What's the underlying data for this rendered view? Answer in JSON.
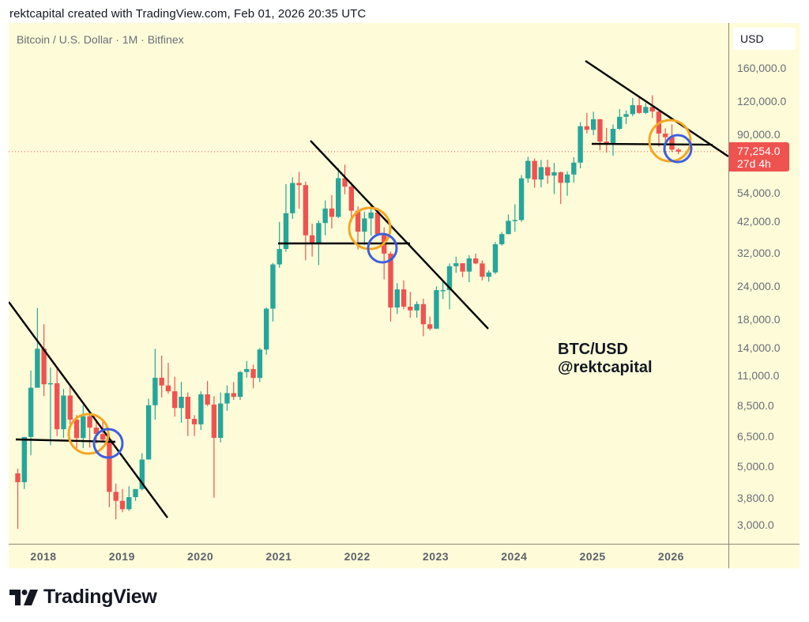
{
  "header": {
    "caption": "rektcapital created with TradingView.com, Feb 01, 2026 20:35 UTC"
  },
  "chart": {
    "symbol_label": "Bitcoin / U.S. Dollar · 1M · Bitfinex",
    "currency_button": "USD",
    "annotation_line1": "BTC/USD",
    "annotation_line2": "@rektcapital",
    "current_price": "77,254.0",
    "countdown": "27d 4h"
  },
  "footer": {
    "logo_text": "TradingView"
  },
  "colors": {
    "background": "#fefcd8",
    "up": "#26a69a",
    "down": "#ef5350",
    "trendline": "#000000",
    "orange_circle": "#f5a623",
    "blue_circle": "#3d5fe0",
    "price_line": "#ef5350"
  },
  "chart_data": {
    "type": "candlestick",
    "title": "Bitcoin / U.S. Dollar · 1M · Bitfinex",
    "xlabel": "",
    "ylabel": "USD",
    "scale": "log",
    "ylim": [
      2700,
      180000
    ],
    "grid": false,
    "y_ticks": [
      "160,000.0",
      "120,000.0",
      "90,000.0",
      "54,000.0",
      "42,000.0",
      "32,000.0",
      "24,000.0",
      "18,000.0",
      "14,000.0",
      "11,000.0",
      "8,500.0",
      "6,500.0",
      "5,000.0",
      "3,800.0",
      "3,000.0"
    ],
    "y_tick_values": [
      160000,
      120000,
      90000,
      54000,
      42000,
      32000,
      24000,
      18000,
      14000,
      11000,
      8500,
      6500,
      5000,
      3800,
      3000
    ],
    "x_ticks": [
      "2018",
      "2019",
      "2020",
      "2021",
      "2022",
      "2023",
      "2024",
      "2025",
      "2026"
    ],
    "last_price": 77254.0,
    "candles_start": "2017-09",
    "candles": [
      [
        4700,
        4900,
        2900,
        4350
      ],
      [
        4350,
        6400,
        4100,
        6450
      ],
      [
        6450,
        11500,
        5500,
        9900
      ],
      [
        9900,
        19800,
        10800,
        13900
      ],
      [
        13900,
        17200,
        9200,
        10200
      ],
      [
        10200,
        11800,
        6000,
        10300
      ],
      [
        10300,
        11700,
        6500,
        6900
      ],
      [
        6900,
        9800,
        6400,
        9250
      ],
      [
        9250,
        10000,
        7000,
        7500
      ],
      [
        7500,
        7800,
        5750,
        6390
      ],
      [
        6390,
        8500,
        5850,
        7730
      ],
      [
        7730,
        7800,
        5880,
        7000
      ],
      [
        7000,
        7400,
        6100,
        6620
      ],
      [
        6620,
        7400,
        6200,
        6300
      ],
      [
        6300,
        6600,
        3500,
        4000
      ],
      [
        4000,
        4300,
        3150,
        3700
      ],
      [
        3700,
        4100,
        3350,
        3440
      ],
      [
        3440,
        4200,
        3390,
        3820
      ],
      [
        3820,
        4100,
        3700,
        4100
      ],
      [
        4100,
        5600,
        4050,
        5300
      ],
      [
        5300,
        9000,
        5300,
        8500
      ],
      [
        8500,
        13900,
        7500,
        10800
      ],
      [
        10800,
        13100,
        9100,
        10100
      ],
      [
        10100,
        12300,
        9400,
        9600
      ],
      [
        9600,
        10900,
        7700,
        8300
      ],
      [
        8300,
        10400,
        7300,
        9150
      ],
      [
        9150,
        9500,
        6500,
        7550
      ],
      [
        7550,
        7800,
        6500,
        7200
      ],
      [
        7200,
        9600,
        6850,
        9350
      ],
      [
        9350,
        10500,
        8450,
        8550
      ],
      [
        8550,
        9200,
        3800,
        6400
      ],
      [
        6400,
        9500,
        6150,
        8630
      ],
      [
        8630,
        10100,
        8100,
        9450
      ],
      [
        9450,
        10400,
        8900,
        9140
      ],
      [
        9140,
        11450,
        8900,
        11350
      ],
      [
        11350,
        12500,
        10800,
        11650
      ],
      [
        11650,
        12100,
        9850,
        10780
      ],
      [
        10780,
        14000,
        10400,
        13800
      ],
      [
        13800,
        19900,
        13200,
        19700
      ],
      [
        19700,
        29300,
        17600,
        28950
      ],
      [
        28950,
        41900,
        28100,
        33100
      ],
      [
        33100,
        58300,
        32300,
        45200
      ],
      [
        45200,
        61800,
        43000,
        58800
      ],
      [
        58800,
        64800,
        47000,
        57700
      ],
      [
        57700,
        59500,
        30000,
        37300
      ],
      [
        37300,
        41300,
        31000,
        35000
      ],
      [
        35000,
        42400,
        28800,
        41500
      ],
      [
        41500,
        50500,
        37300,
        47100
      ],
      [
        47100,
        52900,
        39600,
        43800
      ],
      [
        43800,
        67000,
        43300,
        61300
      ],
      [
        61300,
        69000,
        53300,
        57000
      ],
      [
        57000,
        59100,
        41900,
        46200
      ],
      [
        46200,
        48000,
        33000,
        38500
      ],
      [
        38500,
        45800,
        34300,
        43200
      ],
      [
        43200,
        48200,
        37200,
        45500
      ],
      [
        45500,
        47400,
        37700,
        37700
      ],
      [
        37700,
        40000,
        25400,
        31800
      ],
      [
        31800,
        32400,
        17600,
        19900
      ],
      [
        19900,
        24600,
        18800,
        23300
      ],
      [
        23300,
        25200,
        19600,
        20050
      ],
      [
        20050,
        22800,
        18200,
        19400
      ],
      [
        19400,
        21000,
        18200,
        20500
      ],
      [
        20500,
        21500,
        15500,
        17200
      ],
      [
        17200,
        18400,
        16300,
        16550
      ],
      [
        16550,
        23900,
        16500,
        23150
      ],
      [
        23150,
        25300,
        21400,
        23150
      ],
      [
        23150,
        29200,
        19600,
        28500
      ],
      [
        28500,
        31000,
        26900,
        29250
      ],
      [
        29250,
        29300,
        25900,
        27200
      ],
      [
        27200,
        31400,
        24800,
        30500
      ],
      [
        30500,
        31800,
        29000,
        29200
      ],
      [
        29200,
        30000,
        25200,
        26000
      ],
      [
        26000,
        27500,
        24900,
        27000
      ],
      [
        27000,
        35200,
        26600,
        34500
      ],
      [
        34500,
        38400,
        34100,
        37700
      ],
      [
        37700,
        44700,
        37600,
        42300
      ],
      [
        42300,
        48900,
        38500,
        42600
      ],
      [
        42600,
        63000,
        41900,
        61200
      ],
      [
        61200,
        73800,
        59000,
        71300
      ],
      [
        71300,
        72800,
        56500,
        60600
      ],
      [
        60600,
        71900,
        56600,
        67500
      ],
      [
        67500,
        72000,
        58400,
        62700
      ],
      [
        62700,
        70000,
        53500,
        64600
      ],
      [
        64600,
        65000,
        49000,
        58900
      ],
      [
        58900,
        65100,
        52600,
        63300
      ],
      [
        63300,
        73600,
        58900,
        70200
      ],
      [
        70200,
        99800,
        66800,
        96400
      ],
      [
        96400,
        108300,
        90500,
        93400
      ],
      [
        93400,
        109300,
        89200,
        102400
      ],
      [
        102400,
        102700,
        78200,
        84300
      ],
      [
        84300,
        95000,
        76600,
        82500
      ],
      [
        82500,
        97900,
        74500,
        94200
      ],
      [
        94200,
        111900,
        93300,
        104600
      ],
      [
        104600,
        110500,
        98200,
        107100
      ],
      [
        107100,
        123200,
        105100,
        115700
      ],
      [
        115700,
        124500,
        107300,
        108200
      ],
      [
        108200,
        117900,
        107200,
        114000
      ],
      [
        114000,
        126200,
        103500,
        109500
      ],
      [
        109500,
        111200,
        80600,
        90400
      ],
      [
        90400,
        94600,
        84400,
        87600
      ],
      [
        87600,
        97900,
        77000,
        78600
      ],
      [
        78600,
        79800,
        75600,
        77254
      ]
    ]
  }
}
